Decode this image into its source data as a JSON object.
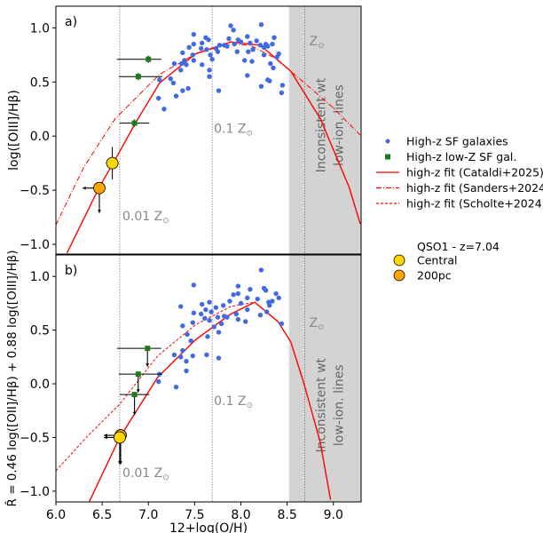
{
  "chart_data": [
    {
      "panel_label": "a)",
      "type": "scatter",
      "ylabel": "log([OIII]/Hβ)",
      "xlabel": "",
      "xlim": [
        6.0,
        9.3
      ],
      "ylim": [
        -1.09,
        1.2
      ],
      "yticks": [
        "1.0",
        "0.5",
        "0.0",
        "−0.5",
        "−1.0"
      ],
      "ytick_values": [
        1.0,
        0.5,
        0.0,
        -0.5,
        -1.0
      ],
      "shaded_region": {
        "from": 8.52,
        "to": 9.3,
        "label_lines": [
          "Inconsistent wt",
          "low-ion. lines"
        ],
        "color": "#d3d3d3"
      },
      "vlines": [
        {
          "x": 6.69,
          "label": "0.01 Z",
          "label_x": 6.7,
          "label_y": -0.78
        },
        {
          "x": 7.69,
          "label": "0.1 Z",
          "label_x": 7.69,
          "label_y": 0.03
        },
        {
          "x": 8.69,
          "label": "Z",
          "label_x": 8.72,
          "label_y": 0.84
        }
      ],
      "sf_galaxies": [
        [
          7.89,
          1.02
        ],
        [
          8.22,
          1.03
        ],
        [
          7.92,
          0.98
        ],
        [
          7.49,
          0.94
        ],
        [
          8.36,
          0.91
        ],
        [
          7.62,
          0.91
        ],
        [
          7.65,
          0.89
        ],
        [
          7.58,
          0.86
        ],
        [
          7.87,
          0.9
        ],
        [
          7.97,
          0.89
        ],
        [
          8.07,
          0.92
        ],
        [
          8.17,
          0.88
        ],
        [
          8.34,
          0.85
        ],
        [
          7.44,
          0.82
        ],
        [
          7.49,
          0.85
        ],
        [
          7.57,
          0.81
        ],
        [
          7.63,
          0.8
        ],
        [
          7.73,
          0.81
        ],
        [
          7.77,
          0.84
        ],
        [
          7.82,
          0.84
        ],
        [
          7.85,
          0.83
        ],
        [
          7.93,
          0.85
        ],
        [
          8.0,
          0.87
        ],
        [
          8.1,
          0.86
        ],
        [
          8.21,
          0.84
        ],
        [
          8.25,
          0.82
        ],
        [
          8.27,
          0.85
        ],
        [
          8.29,
          0.83
        ],
        [
          7.37,
          0.77
        ],
        [
          7.48,
          0.75
        ],
        [
          7.75,
          0.78
        ],
        [
          7.96,
          0.78
        ],
        [
          8.08,
          0.78
        ],
        [
          8.13,
          0.8
        ],
        [
          8.25,
          0.75
        ],
        [
          8.41,
          0.76
        ],
        [
          8.39,
          0.73
        ],
        [
          7.67,
          0.75
        ],
        [
          7.39,
          0.7
        ],
        [
          7.28,
          0.67
        ],
        [
          7.36,
          0.67
        ],
        [
          7.41,
          0.66
        ],
        [
          7.49,
          0.7
        ],
        [
          7.58,
          0.66
        ],
        [
          7.69,
          0.71
        ],
        [
          8.04,
          0.7
        ],
        [
          8.12,
          0.69
        ],
        [
          8.32,
          0.67
        ],
        [
          8.35,
          0.63
        ],
        [
          7.35,
          0.61
        ],
        [
          7.66,
          0.61
        ],
        [
          7.12,
          0.52
        ],
        [
          7.24,
          0.53
        ],
        [
          7.27,
          0.49
        ],
        [
          7.66,
          0.55
        ],
        [
          8.07,
          0.56
        ],
        [
          8.29,
          0.52
        ],
        [
          8.31,
          0.51
        ],
        [
          8.45,
          0.47
        ],
        [
          8.22,
          0.46
        ],
        [
          7.43,
          0.44
        ],
        [
          7.37,
          0.42
        ],
        [
          7.76,
          0.42
        ],
        [
          8.44,
          0.4
        ],
        [
          7.3,
          0.37
        ],
        [
          7.11,
          0.35
        ],
        [
          7.17,
          0.25
        ]
      ],
      "lowz_galaxies": [
        {
          "x": 7.0,
          "y": 0.71,
          "xerr": [
            6.66,
            7.14
          ],
          "upper_limit": false
        },
        {
          "x": 6.89,
          "y": 0.55,
          "xerr": [
            6.68,
            7.15
          ],
          "upper_limit": false
        },
        {
          "x": 6.85,
          "y": 0.12,
          "xerr": [
            6.69,
            7.01
          ],
          "upper_limit": false
        }
      ],
      "qso": [
        {
          "name": "Central",
          "x": 6.61,
          "y": -0.25,
          "xerr": 0.07,
          "yerr": 0.15,
          "limit": false
        },
        {
          "name": "200pc",
          "x": 6.47,
          "y": -0.48,
          "arrow_left_to": 6.29,
          "arrow_down_to": -0.71,
          "limit": true
        }
      ],
      "fits": [
        {
          "name": "Cataldi+2025",
          "style": "solid",
          "x": [
            6.12,
            6.47,
            6.62,
            6.86,
            7.12,
            7.51,
            7.89,
            8.21,
            8.54,
            8.86,
            9.17,
            9.29
          ],
          "y": [
            -1.08,
            -0.47,
            -0.25,
            0.12,
            0.49,
            0.76,
            0.87,
            0.84,
            0.6,
            0.16,
            -0.47,
            -0.81
          ]
        },
        {
          "name": "Sanders+2024",
          "style": "dashdot",
          "x": [
            6.0,
            6.3,
            6.64,
            7.12,
            7.51,
            7.89,
            8.1,
            8.37,
            8.69,
            9.0,
            9.29
          ],
          "y": [
            -0.82,
            -0.29,
            0.16,
            0.57,
            0.76,
            0.85,
            0.84,
            0.72,
            0.49,
            0.26,
            0.01
          ]
        }
      ]
    },
    {
      "panel_label": "b)",
      "type": "scatter",
      "ylabel": "R̂ = 0.46 log([OII]/Hβ) + 0.88 log([OIII]/Hβ)",
      "xlabel": "12+log(O/H)",
      "xlim": [
        6.0,
        9.3
      ],
      "ylim": [
        -1.1,
        1.2
      ],
      "xticks": [
        "6.0",
        "6.5",
        "7.0",
        "7.5",
        "8.0",
        "8.5",
        "9.0"
      ],
      "xtick_values": [
        6.0,
        6.5,
        7.0,
        7.5,
        8.0,
        8.5,
        9.0
      ],
      "yticks": [
        "1.0",
        "0.5",
        "0.0",
        "−0.5",
        "−1.0"
      ],
      "ytick_values": [
        1.0,
        0.5,
        0.0,
        -0.5,
        -1.0
      ],
      "shaded_region": {
        "from": 8.52,
        "to": 9.3,
        "label_lines": [
          "Inconsistent wt",
          "low-ion. lines"
        ],
        "color": "#d3d3d3"
      },
      "vlines": [
        {
          "x": 6.69,
          "label": "0.01 Z",
          "label_x": 6.7,
          "label_y": -0.87
        },
        {
          "x": 7.69,
          "label": "0.1 Z",
          "label_x": 7.69,
          "label_y": -0.2
        },
        {
          "x": 8.69,
          "label": "Z",
          "label_x": 8.72,
          "label_y": 0.53
        }
      ],
      "sf_galaxies": [
        [
          8.22,
          1.06
        ],
        [
          7.49,
          0.92
        ],
        [
          7.97,
          0.91
        ],
        [
          8.1,
          0.88
        ],
        [
          8.25,
          0.89
        ],
        [
          8.27,
          0.87
        ],
        [
          7.92,
          0.83
        ],
        [
          7.97,
          0.84
        ],
        [
          8.07,
          0.8
        ],
        [
          8.38,
          0.84
        ],
        [
          8.41,
          0.8
        ],
        [
          8.34,
          0.77
        ],
        [
          8.18,
          0.79
        ],
        [
          7.35,
          0.72
        ],
        [
          7.66,
          0.76
        ],
        [
          7.58,
          0.74
        ],
        [
          7.88,
          0.77
        ],
        [
          7.81,
          0.73
        ],
        [
          8.0,
          0.75
        ],
        [
          8.3,
          0.76
        ],
        [
          8.31,
          0.73
        ],
        [
          7.62,
          0.69
        ],
        [
          7.73,
          0.71
        ],
        [
          7.49,
          0.66
        ],
        [
          7.57,
          0.65
        ],
        [
          7.68,
          0.67
        ],
        [
          7.82,
          0.63
        ],
        [
          7.85,
          0.62
        ],
        [
          7.95,
          0.65
        ],
        [
          7.97,
          0.6
        ],
        [
          8.07,
          0.69
        ],
        [
          8.21,
          0.64
        ],
        [
          8.28,
          0.67
        ],
        [
          7.61,
          0.61
        ],
        [
          7.66,
          0.59
        ],
        [
          7.75,
          0.62
        ],
        [
          8.05,
          0.58
        ],
        [
          8.44,
          0.56
        ],
        [
          7.37,
          0.54
        ],
        [
          7.48,
          0.57
        ],
        [
          7.79,
          0.56
        ],
        [
          7.71,
          0.53
        ],
        [
          7.42,
          0.46
        ],
        [
          7.76,
          0.48
        ],
        [
          7.64,
          0.44
        ],
        [
          7.46,
          0.4
        ],
        [
          7.37,
          0.31
        ],
        [
          7.28,
          0.27
        ],
        [
          7.35,
          0.25
        ],
        [
          7.48,
          0.26
        ],
        [
          7.63,
          0.27
        ],
        [
          7.76,
          0.24
        ],
        [
          7.41,
          0.21
        ],
        [
          7.12,
          0.09
        ],
        [
          7.41,
          0.12
        ],
        [
          7.11,
          0.02
        ],
        [
          7.3,
          -0.03
        ]
      ],
      "lowz_galaxies": [
        {
          "x": 6.99,
          "y": 0.33,
          "xerr": [
            6.66,
            7.14
          ],
          "upper_limit": true,
          "arrow_to": 0.16
        },
        {
          "x": 6.89,
          "y": 0.09,
          "xerr": [
            6.68,
            7.15
          ],
          "upper_limit": true,
          "arrow_to": -0.08
        },
        {
          "x": 6.85,
          "y": -0.1,
          "xerr": [
            6.69,
            7.01
          ],
          "upper_limit": true,
          "arrow_to": -0.29
        }
      ],
      "qso": [
        {
          "name": "200pc",
          "x": 6.7,
          "y": -0.48,
          "arrow_left_to": 6.52,
          "arrow_down_to": -0.75,
          "limit": true
        },
        {
          "name": "Central",
          "x": 6.69,
          "y": -0.5,
          "arrow_left_to": 6.52,
          "arrow_down_to": -0.75,
          "limit": true
        }
      ],
      "fits": [
        {
          "name": "Cataldi+2025",
          "style": "solid",
          "x": [
            6.36,
            6.69,
            7.1,
            7.51,
            7.89,
            8.15,
            8.4,
            8.54,
            8.69,
            8.86,
            8.97
          ],
          "y": [
            -1.1,
            -0.5,
            0.06,
            0.41,
            0.65,
            0.76,
            0.58,
            0.39,
            -0.02,
            -0.55,
            -1.08
          ]
        },
        {
          "name": "Scholte+2024",
          "style": "dashed",
          "x": [
            6.0,
            6.35,
            6.69,
            7.1,
            7.51,
            7.89,
            8.15
          ],
          "y": [
            -0.81,
            -0.48,
            -0.19,
            0.26,
            0.55,
            0.72,
            0.76
          ]
        }
      ]
    }
  ],
  "legend": {
    "placement": "right",
    "entries": [
      {
        "label": "High-z SF galaxies",
        "marker": "circle",
        "color": "#4169e1"
      },
      {
        "label": "High-z low-Z SF gal.",
        "marker": "square",
        "color": "#1e7a1e"
      },
      {
        "label": "high-z fit (Cataldi+2025)",
        "marker": "solid",
        "color": "#ff0000"
      },
      {
        "label": "high-z fit (Sanders+2024)",
        "marker": "dashdot",
        "color": "#ff0000"
      },
      {
        "label": "high-z fit (Scholte+2024)",
        "marker": "dashed",
        "color": "#ff0000"
      }
    ],
    "qso_title": "QSO1 - z=7.04",
    "qso_entries": [
      {
        "label": "Central",
        "color": "#ffd700"
      },
      {
        "label": "200pc",
        "color": "#ffa500"
      }
    ]
  },
  "colors": {
    "sf": "#4169e1",
    "lowz": "#1e7a1e",
    "fit": "#ff0000",
    "central": "#ffd700",
    "pc200": "#ffa500",
    "shade": "#d3d3d3",
    "vline_label": "#888888"
  }
}
